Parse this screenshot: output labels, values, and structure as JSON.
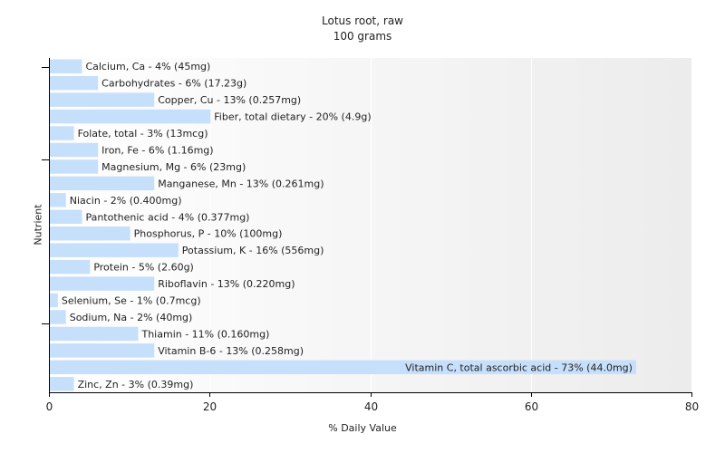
{
  "chart_data": {
    "type": "bar",
    "orientation": "horizontal",
    "title": "Lotus root, raw",
    "subtitle": "100 grams",
    "xlabel": "% Daily Value",
    "ylabel": "Nutrient",
    "xlim": [
      0,
      80
    ],
    "xticks": [
      0,
      20,
      40,
      60,
      80
    ],
    "grid": true,
    "bar_color": "#c6dffb",
    "categories": [
      "Calcium, Ca",
      "Carbohydrates",
      "Copper, Cu",
      "Fiber, total dietary",
      "Folate, total",
      "Iron, Fe",
      "Magnesium, Mg",
      "Manganese, Mn",
      "Niacin",
      "Pantothenic acid",
      "Phosphorus, P",
      "Potassium, K",
      "Protein",
      "Riboflavin",
      "Selenium, Se",
      "Sodium, Na",
      "Thiamin",
      "Vitamin B-6",
      "Vitamin C, total ascorbic acid",
      "Zinc, Zn"
    ],
    "values": [
      4,
      6,
      13,
      20,
      3,
      6,
      6,
      13,
      2,
      4,
      10,
      16,
      5,
      13,
      1,
      2,
      11,
      13,
      73,
      3
    ],
    "labels": [
      "Calcium, Ca - 4% (45mg)",
      "Carbohydrates - 6% (17.23g)",
      "Copper, Cu - 13% (0.257mg)",
      "Fiber, total dietary - 20% (4.9g)",
      "Folate, total - 3% (13mcg)",
      "Iron, Fe - 6% (1.16mg)",
      "Magnesium, Mg - 6% (23mg)",
      "Manganese, Mn - 13% (0.261mg)",
      "Niacin - 2% (0.400mg)",
      "Pantothenic acid - 4% (0.377mg)",
      "Phosphorus, P - 10% (100mg)",
      "Potassium, K - 16% (556mg)",
      "Protein - 5% (2.60g)",
      "Riboflavin - 13% (0.220mg)",
      "Selenium, Se - 1% (0.7mcg)",
      "Sodium, Na - 2% (40mg)",
      "Thiamin - 11% (0.160mg)",
      "Vitamin B-6 - 13% (0.258mg)",
      "Vitamin C, total ascorbic acid - 73% (44.0mg)",
      "Zinc, Zn - 3% (0.39mg)"
    ]
  }
}
